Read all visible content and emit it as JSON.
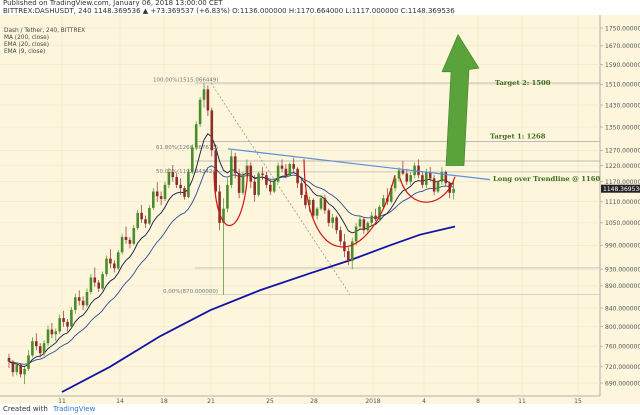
{
  "header": {
    "published": "Published on TradingView.com, January 06, 2018 13:00:00 CET",
    "ohlc_line": "BITTREX:DASHUSDT, 240  1148.369536 ▲ +73.369537 (+6.83%)  O:1136.000000  H:1170.664000  L:1117.000000  C:1148.369536"
  },
  "footer": {
    "created_with": "Created with",
    "brand": "TradingView"
  },
  "colors": {
    "background": "#fdf6dc",
    "up_candle": "#4a8c2c",
    "down_candle": "#8b2f2a",
    "ma200": "#1212a8",
    "ema20": "#2e4a9a",
    "ema9": "#0d1b3e",
    "trendline": "#5a8fd8",
    "cup": "#d21414",
    "arrow": "#5aa33a",
    "annotation": "#3d6b1f",
    "fib_line": "#999999",
    "price_badge": "#222222"
  },
  "chart_data": {
    "type": "candlestick",
    "symbol": "Dash / Tether, 240, BITTREX",
    "indicators": [
      "MA (200, close)",
      "EMA (20, close)",
      "EMA (9, close)"
    ],
    "y_scale": "log",
    "ylim": [
      674,
      1750
    ],
    "y_ticks": [
      "1750.000000",
      "1670.000000",
      "1590.000000",
      "1510.000000",
      "1430.000000",
      "1350.000000",
      "1270.000000",
      "1220.000000",
      "1170.000000",
      "1110.000000",
      "1050.000000",
      "990.000000",
      "930.000000",
      "890.000000",
      "840.000000",
      "800.000000",
      "760.000000",
      "720.000000",
      "690.000000"
    ],
    "x_ticks": [
      "11",
      "14",
      "18",
      "21",
      "25",
      "28",
      "2018",
      "4",
      "8",
      "11",
      "15"
    ],
    "last_price": "1148.369536",
    "fibonacci": [
      {
        "label": "100.00%(1515.066449)",
        "value": 1515.07
      },
      {
        "label": "61.80%(1268.867673)",
        "value": 1268.87
      },
      {
        "label": "50.00%(1192.343424)",
        "value": 1192.34
      },
      {
        "label": "0.00%(870.000000)",
        "value": 870.0
      }
    ],
    "horizontal_levels": [
      1515,
      1300,
      1235,
      1200,
      933
    ],
    "annotations": [
      {
        "text": "Target 2: 1500"
      },
      {
        "text": "Target 1: 1268"
      },
      {
        "text": "Long over Trendline @ 1160"
      }
    ],
    "candles": [
      [
        1,
        737,
        745,
        718,
        730
      ],
      [
        2,
        730,
        733,
        702,
        710
      ],
      [
        3,
        710,
        728,
        704,
        724
      ],
      [
        4,
        724,
        727,
        700,
        706
      ],
      [
        5,
        706,
        720,
        688,
        716
      ],
      [
        6,
        716,
        752,
        712,
        742
      ],
      [
        7,
        742,
        778,
        738,
        770
      ],
      [
        8,
        770,
        786,
        752,
        760
      ],
      [
        9,
        760,
        766,
        738,
        746
      ],
      [
        10,
        746,
        772,
        740,
        766
      ],
      [
        11,
        766,
        802,
        760,
        794
      ],
      [
        12,
        794,
        808,
        776,
        784
      ],
      [
        13,
        784,
        796,
        770,
        790
      ],
      [
        14,
        790,
        826,
        784,
        818
      ],
      [
        15,
        818,
        834,
        800,
        810
      ],
      [
        16,
        810,
        816,
        790,
        800
      ],
      [
        17,
        800,
        842,
        796,
        836
      ],
      [
        18,
        836,
        872,
        828,
        864
      ],
      [
        19,
        864,
        880,
        846,
        856
      ],
      [
        20,
        856,
        866,
        836,
        846
      ],
      [
        21,
        846,
        884,
        842,
        876
      ],
      [
        22,
        876,
        918,
        870,
        910
      ],
      [
        23,
        910,
        934,
        888,
        898
      ],
      [
        24,
        898,
        904,
        876,
        884
      ],
      [
        25,
        884,
        924,
        880,
        918
      ],
      [
        26,
        918,
        964,
        912,
        956
      ],
      [
        27,
        956,
        980,
        932,
        944
      ],
      [
        28,
        944,
        952,
        922,
        932
      ],
      [
        29,
        932,
        978,
        928,
        972
      ],
      [
        30,
        972,
        1020,
        966,
        1012
      ],
      [
        31,
        1012,
        1040,
        994,
        1004
      ],
      [
        32,
        1004,
        1012,
        982,
        994
      ],
      [
        33,
        994,
        1044,
        990,
        1036
      ],
      [
        34,
        1036,
        1086,
        1030,
        1078
      ],
      [
        35,
        1078,
        1100,
        1050,
        1060
      ],
      [
        36,
        1060,
        1070,
        1036,
        1048
      ],
      [
        37,
        1048,
        1100,
        1044,
        1092
      ],
      [
        38,
        1092,
        1150,
        1086,
        1140
      ],
      [
        39,
        1140,
        1168,
        1110,
        1126
      ],
      [
        40,
        1126,
        1140,
        1100,
        1118
      ],
      [
        41,
        1118,
        1170,
        1112,
        1160
      ],
      [
        42,
        1160,
        1212,
        1150,
        1200
      ],
      [
        43,
        1200,
        1222,
        1170,
        1184
      ],
      [
        44,
        1184,
        1196,
        1150,
        1160
      ],
      [
        45,
        1160,
        1180,
        1130,
        1150
      ],
      [
        46,
        1150,
        1156,
        1116,
        1124
      ],
      [
        47,
        1124,
        1210,
        1120,
        1200
      ],
      [
        48,
        1200,
        1290,
        1194,
        1280
      ],
      [
        49,
        1280,
        1370,
        1270,
        1360
      ],
      [
        50,
        1360,
        1460,
        1350,
        1450
      ],
      [
        51,
        1450,
        1515,
        1420,
        1490
      ],
      [
        52,
        1490,
        1505,
        1390,
        1410
      ],
      [
        53,
        1410,
        1420,
        1250,
        1270
      ],
      [
        54,
        1270,
        1290,
        1120,
        1140
      ],
      [
        55,
        1140,
        1160,
        1030,
        1050
      ],
      [
        56,
        1050,
        1120,
        870,
        1090
      ],
      [
        57,
        1090,
        1180,
        1080,
        1160
      ],
      [
        58,
        1160,
        1270,
        1150,
        1250
      ],
      [
        59,
        1250,
        1262,
        1180,
        1196
      ],
      [
        60,
        1196,
        1210,
        1120,
        1136
      ],
      [
        61,
        1136,
        1200,
        1130,
        1190
      ],
      [
        62,
        1190,
        1240,
        1170,
        1220
      ],
      [
        63,
        1220,
        1230,
        1150,
        1170
      ],
      [
        64,
        1170,
        1190,
        1110,
        1130
      ],
      [
        65,
        1130,
        1200,
        1125,
        1195
      ],
      [
        66,
        1195,
        1215,
        1175,
        1190
      ],
      [
        67,
        1190,
        1200,
        1150,
        1160
      ],
      [
        68,
        1160,
        1175,
        1130,
        1140
      ],
      [
        69,
        1140,
        1180,
        1135,
        1170
      ],
      [
        70,
        1170,
        1230,
        1165,
        1220
      ],
      [
        71,
        1220,
        1240,
        1200,
        1210
      ],
      [
        72,
        1210,
        1225,
        1180,
        1190
      ],
      [
        73,
        1190,
        1230,
        1185,
        1225
      ],
      [
        74,
        1225,
        1245,
        1200,
        1210
      ],
      [
        75,
        1210,
        1215,
        1150,
        1165
      ],
      [
        76,
        1165,
        1180,
        1120,
        1130
      ],
      [
        77,
        1130,
        1140,
        1090,
        1100
      ],
      [
        78,
        1100,
        1125,
        1080,
        1115
      ],
      [
        79,
        1115,
        1120,
        1060,
        1070
      ],
      [
        80,
        1070,
        1095,
        1060,
        1090
      ],
      [
        81,
        1090,
        1130,
        1085,
        1120
      ],
      [
        82,
        1120,
        1130,
        1075,
        1085
      ],
      [
        83,
        1085,
        1090,
        1040,
        1050
      ],
      [
        84,
        1050,
        1075,
        1035,
        1065
      ],
      [
        85,
        1065,
        1070,
        1020,
        1030
      ],
      [
        86,
        1030,
        1040,
        990,
        1000
      ],
      [
        87,
        1000,
        1020,
        960,
        975
      ],
      [
        88,
        975,
        985,
        940,
        950
      ],
      [
        89,
        950,
        1010,
        930,
        1000
      ],
      [
        90,
        1000,
        1050,
        990,
        1040
      ],
      [
        91,
        1040,
        1070,
        1030,
        1060
      ],
      [
        92,
        1060,
        1065,
        1020,
        1030
      ],
      [
        93,
        1030,
        1055,
        1020,
        1050
      ],
      [
        94,
        1050,
        1080,
        1040,
        1070
      ],
      [
        95,
        1070,
        1090,
        1055,
        1060
      ],
      [
        96,
        1060,
        1100,
        1055,
        1095
      ],
      [
        97,
        1095,
        1130,
        1090,
        1120
      ],
      [
        98,
        1120,
        1150,
        1100,
        1110
      ],
      [
        99,
        1110,
        1160,
        1105,
        1150
      ],
      [
        100,
        1150,
        1190,
        1140,
        1180
      ],
      [
        101,
        1180,
        1215,
        1170,
        1205
      ],
      [
        102,
        1205,
        1235,
        1190,
        1195
      ],
      [
        103,
        1195,
        1210,
        1160,
        1170
      ],
      [
        104,
        1170,
        1200,
        1160,
        1190
      ],
      [
        105,
        1190,
        1230,
        1180,
        1220
      ],
      [
        106,
        1220,
        1240,
        1180,
        1190
      ],
      [
        107,
        1190,
        1200,
        1150,
        1160
      ],
      [
        108,
        1160,
        1210,
        1150,
        1200
      ],
      [
        109,
        1200,
        1215,
        1170,
        1180
      ],
      [
        110,
        1180,
        1190,
        1130,
        1140
      ],
      [
        111,
        1140,
        1175,
        1135,
        1170
      ],
      [
        112,
        1170,
        1215,
        1160,
        1200
      ],
      [
        113,
        1200,
        1205,
        1155,
        1165
      ],
      [
        114,
        1165,
        1170,
        1120,
        1136
      ],
      [
        115,
        1136,
        1170,
        1117,
        1148
      ]
    ]
  }
}
